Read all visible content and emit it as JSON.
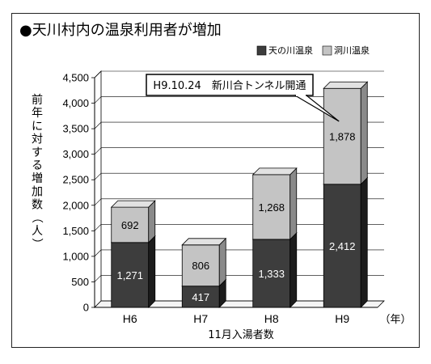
{
  "chart_data": {
    "type": "bar",
    "stacked": true,
    "three_d": true,
    "title": "●天川村内の温泉利用者が増加",
    "ylabel": "前年に対する増加数（人）",
    "xlabel": "11月入湯者数",
    "x_unit": "（年）",
    "categories": [
      "H6",
      "H7",
      "H8",
      "H9"
    ],
    "series": [
      {
        "name": "天の川温泉",
        "values": [
          1271,
          417,
          1333,
          2412
        ],
        "color": "#3d3d3d",
        "label_color": "#ffffff"
      },
      {
        "name": "洞川温泉",
        "values": [
          692,
          806,
          1268,
          1878
        ],
        "color": "#c4c4c4",
        "label_color": "#000000"
      }
    ],
    "value_labels": [
      [
        "1,271",
        "417",
        "1,333",
        "2,412"
      ],
      [
        "692",
        "806",
        "1,268",
        "1,878"
      ]
    ],
    "ylim": [
      0,
      4500
    ],
    "yticks": [
      "0",
      "500",
      "1,000",
      "1,500",
      "2,000",
      "2,500",
      "3,000",
      "3,500",
      "4,000",
      "4,500"
    ],
    "legend": "top-right",
    "grid": true,
    "annotation": {
      "text": "H9.10.24　新川合トンネル開通",
      "category": "H9"
    }
  }
}
